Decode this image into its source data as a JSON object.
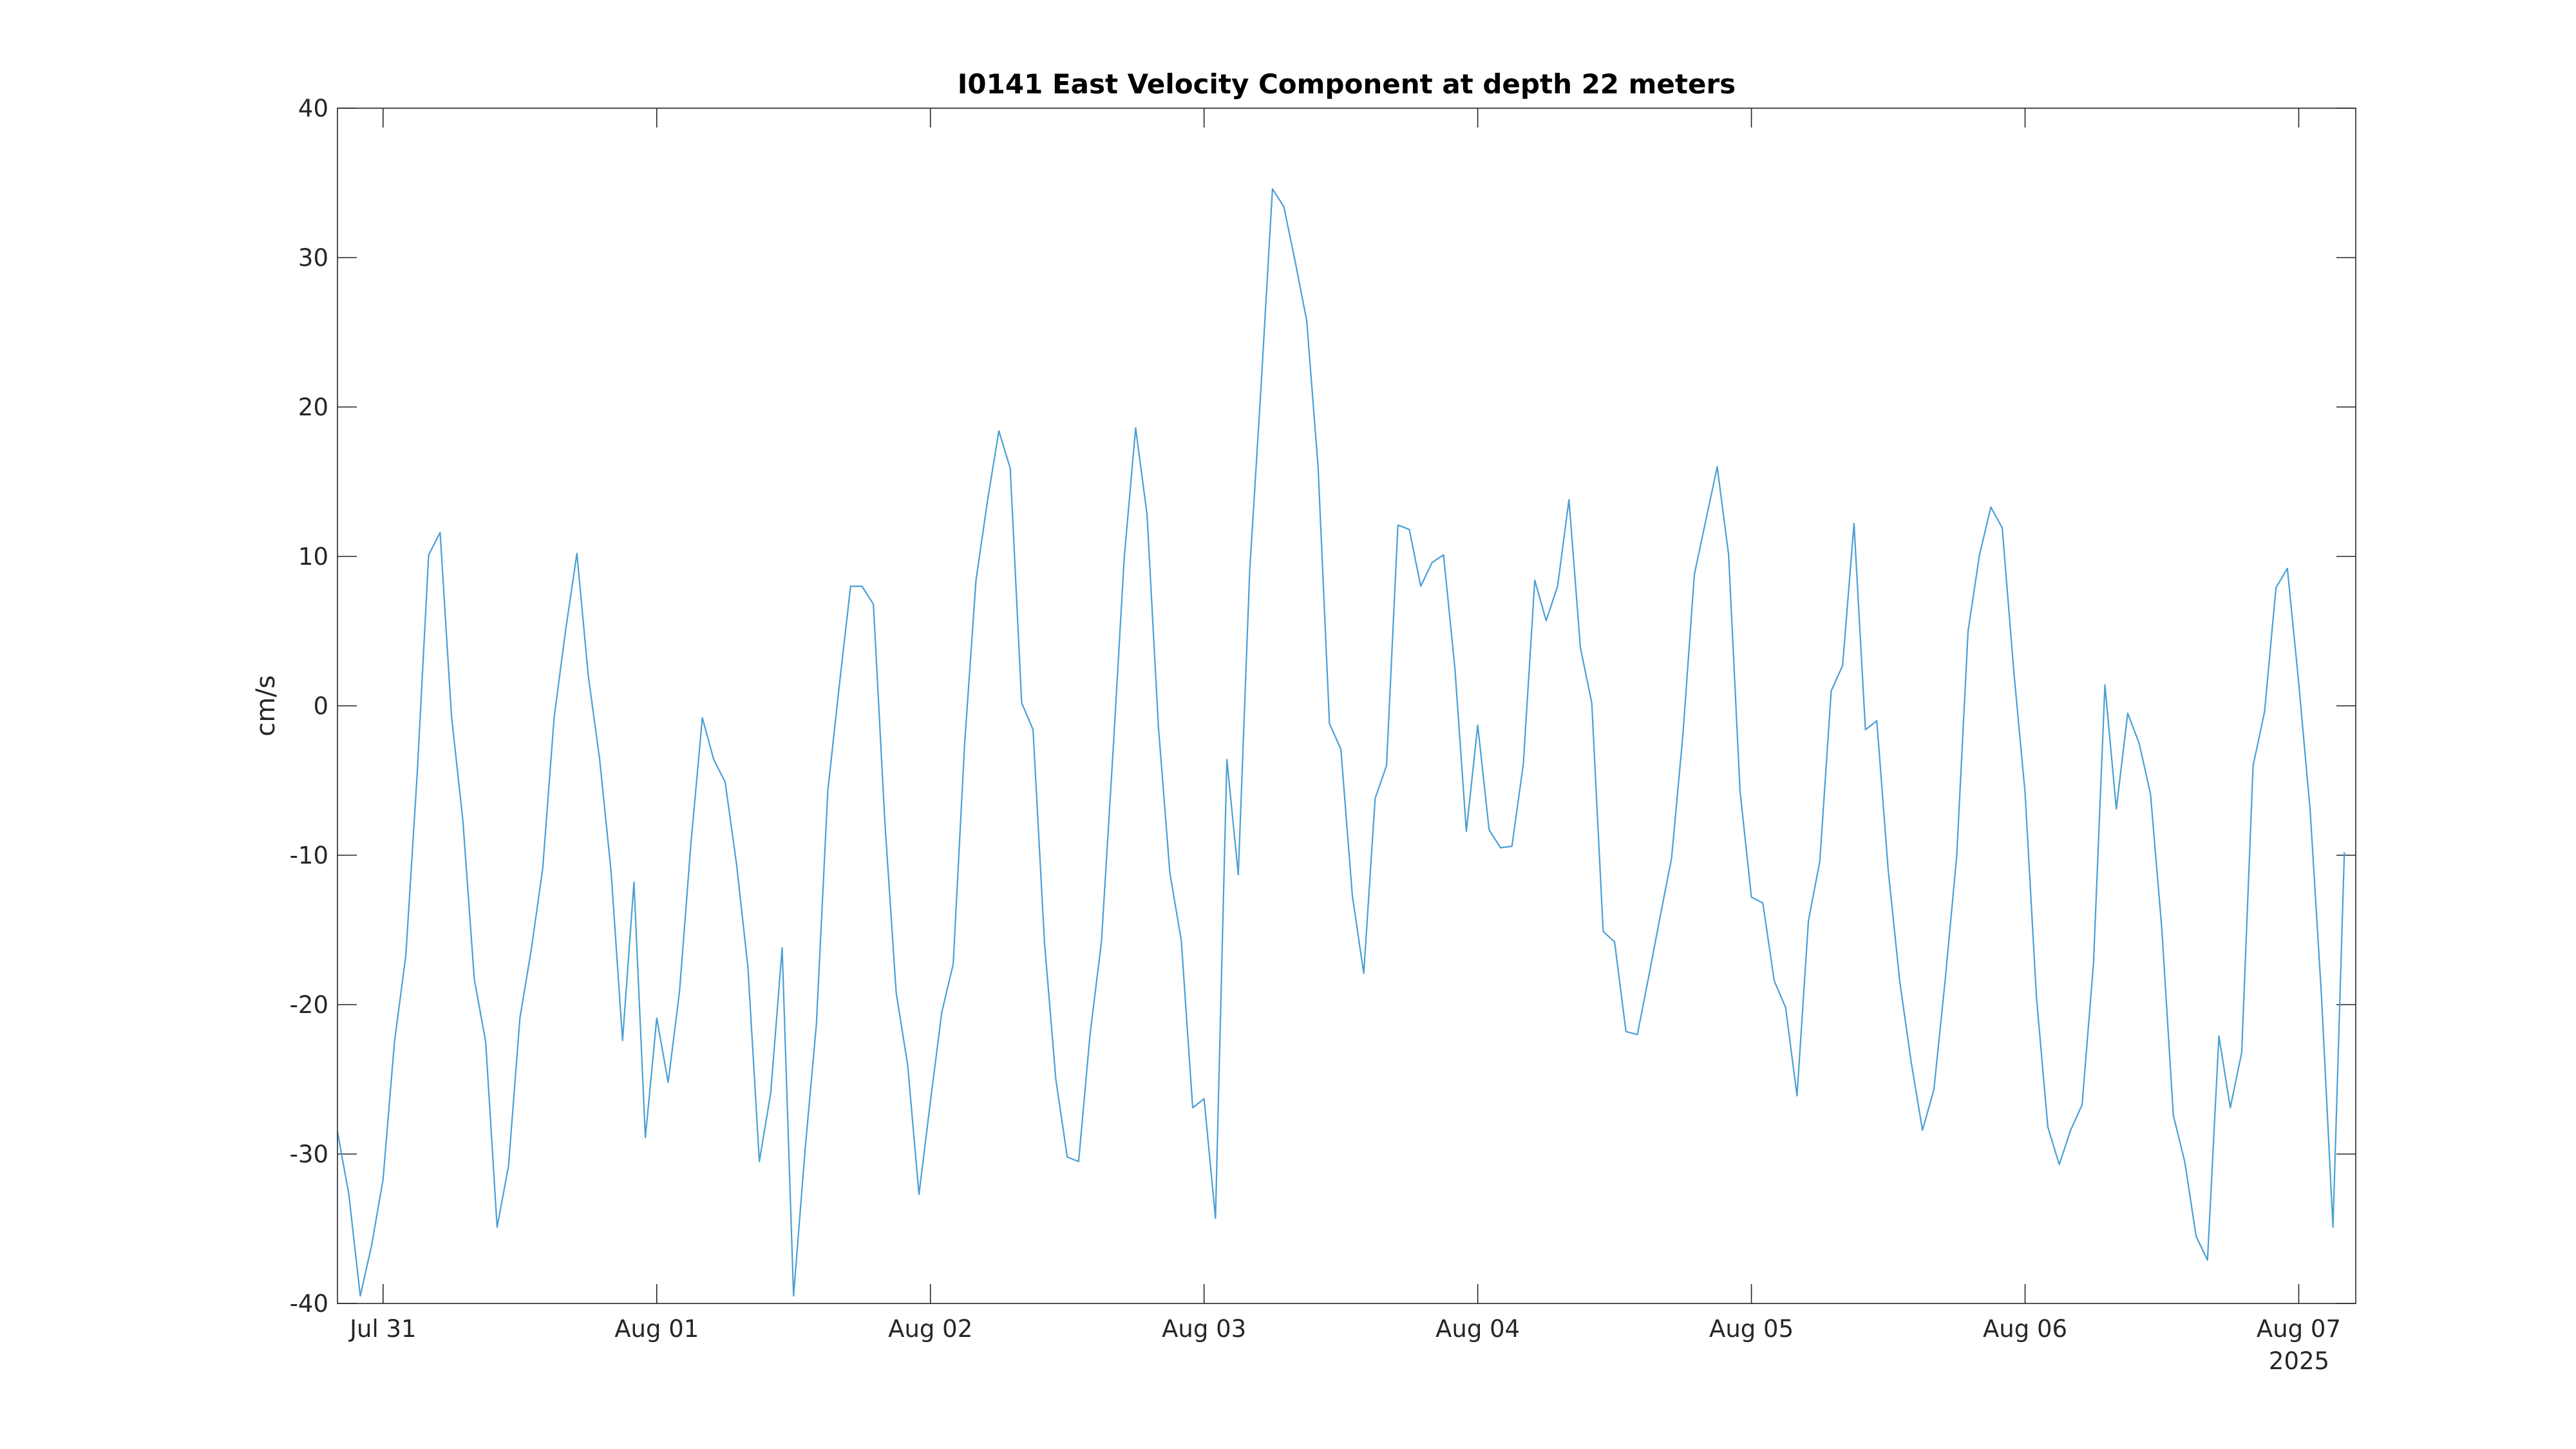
{
  "chart_data": {
    "type": "line",
    "title": "I0141 East Velocity Component at depth 22 meters",
    "xlabel": "",
    "ylabel": "cm/s",
    "year_label": "2025",
    "ylim": [
      -40,
      40
    ],
    "xlim": [
      "2025-07-30T20:00",
      "2025-08-07T05:00"
    ],
    "grid": false,
    "x_ticks": [
      {
        "label": "Jul 31",
        "date": "2025-07-31T00:00"
      },
      {
        "label": "Aug 01",
        "date": "2025-08-01T00:00"
      },
      {
        "label": "Aug 02",
        "date": "2025-08-02T00:00"
      },
      {
        "label": "Aug 03",
        "date": "2025-08-03T00:00"
      },
      {
        "label": "Aug 04",
        "date": "2025-08-04T00:00"
      },
      {
        "label": "Aug 05",
        "date": "2025-08-05T00:00"
      },
      {
        "label": "Aug 06",
        "date": "2025-08-06T00:00"
      },
      {
        "label": "Aug 07",
        "date": "2025-08-07T00:00"
      }
    ],
    "y_ticks": [
      "-40",
      "-30",
      "-20",
      "-10",
      "0",
      "10",
      "20",
      "30",
      "40"
    ],
    "line_color": "#4a9fd5",
    "series": [
      {
        "time_start": "2025-07-30T20:00",
        "interval_hours": 1,
        "values": [
          -28.5,
          -32.7,
          -39.5,
          -36.1,
          -31.7,
          -22.5,
          -16.7,
          -4.5,
          10.1,
          11.6,
          -0.7,
          -7.7,
          -18.3,
          -22.5,
          -34.9,
          -30.8,
          -20.9,
          -16.3,
          -10.9,
          -0.8,
          5.0,
          10.2,
          2.0,
          -3.6,
          -11.1,
          -22.4,
          -11.8,
          -28.9,
          -20.9,
          -25.2,
          -19.1,
          -9.2,
          -0.8,
          -3.6,
          -5.1,
          -10.6,
          -17.5,
          -30.5,
          -25.9,
          -16.2,
          -39.5,
          -29.8,
          -21.3,
          -5.7,
          1.3,
          8.0,
          8.0,
          6.8,
          -7.7,
          -19.2,
          -24.0,
          -32.7,
          -26.5,
          -20.5,
          -17.3,
          -2.6,
          8.4,
          13.7,
          18.4,
          15.9,
          0.2,
          -1.6,
          -15.8,
          -25.0,
          -30.2,
          -30.5,
          -22.0,
          -15.8,
          -3.3,
          9.9,
          18.6,
          12.8,
          -1.4,
          -11.2,
          -15.7,
          -26.9,
          -26.3,
          -34.3,
          -3.6,
          -11.3,
          9.0,
          21.4,
          34.6,
          33.4,
          29.7,
          25.8,
          16.0,
          -1.2,
          -2.9,
          -12.7,
          -17.9,
          -6.2,
          -4.0,
          12.1,
          11.8,
          8.0,
          9.6,
          10.1,
          2.5,
          -8.4,
          -1.3,
          -8.3,
          -9.5,
          -9.4,
          -3.9,
          8.4,
          5.7,
          8.0,
          13.8,
          3.9,
          0.2,
          -15.1,
          -15.8,
          -21.8,
          -22.0,
          -18.1,
          -14.1,
          -10.2,
          -1.9,
          8.8,
          12.4,
          16.0,
          10.1,
          -5.7,
          -12.8,
          -13.2,
          -18.4,
          -20.2,
          -26.1,
          -14.4,
          -10.4,
          1.0,
          2.7,
          12.2,
          -1.6,
          -1.0,
          -11.0,
          -18.4,
          -23.8,
          -28.4,
          -25.7,
          -18.3,
          -10.1,
          5.0,
          10.1,
          13.3,
          11.9,
          2.4,
          -5.8,
          -19.5,
          -28.2,
          -30.7,
          -28.4,
          -26.7,
          -17.2,
          1.4,
          -6.9,
          -0.5,
          -2.5,
          -5.9,
          -15.0,
          -27.4,
          -30.5,
          -35.5,
          -37.1,
          -22.1,
          -26.9,
          -23.2,
          -4.0,
          -0.4,
          7.9,
          9.2,
          1.5,
          -7.0,
          -19.5,
          -34.9,
          -9.8
        ]
      }
    ]
  }
}
